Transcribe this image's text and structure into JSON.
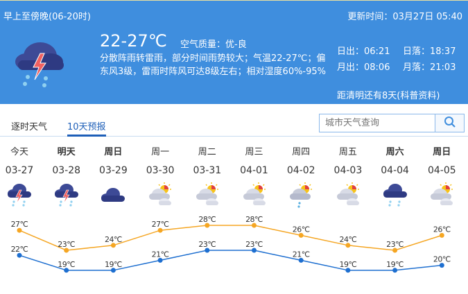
{
  "header": {
    "period": "早上至傍晚(06-20时)",
    "update_time": "更新时间：03月27日 05:40",
    "icon": "thunder-rain-icon",
    "temp_range": "22-27℃",
    "air_quality": "空气质量：优-良",
    "description": "分散阵雨转雷雨，部分时间雨势较大；气温22-27℃；偏东风3级，雷雨时阵风可达8级左右；相对湿度60%-95%",
    "sunrise": "日出：06:21",
    "sunset": "日落：18:37",
    "moonrise": "月出：08:06",
    "moonset": "月落：21:03",
    "qingming": "距清明还有8天(科普资料)",
    "color": "#3f8ede"
  },
  "tabs": [
    {
      "label": "逐时天气",
      "active": false
    },
    {
      "label": "10天预报",
      "active": true
    }
  ],
  "search": {
    "placeholder": "城市天气查询",
    "icon": "search-icon"
  },
  "forecast": [
    {
      "weekday": "今天",
      "date": "03-27",
      "bold": false,
      "icon": "thunder-rain"
    },
    {
      "weekday": "明天",
      "date": "03-28",
      "bold": true,
      "icon": "thunder-rain"
    },
    {
      "weekday": "周日",
      "date": "03-29",
      "bold": true,
      "icon": "overcast"
    },
    {
      "weekday": "周一",
      "date": "03-30",
      "bold": false,
      "icon": "partly-cloudy"
    },
    {
      "weekday": "周二",
      "date": "03-31",
      "bold": false,
      "icon": "partly-cloudy"
    },
    {
      "weekday": "周三",
      "date": "04-01",
      "bold": false,
      "icon": "partly-cloudy"
    },
    {
      "weekday": "周四",
      "date": "04-02",
      "bold": false,
      "icon": "sun-cloud-rain"
    },
    {
      "weekday": "周五",
      "date": "04-03",
      "bold": false,
      "icon": "partly-cloudy"
    },
    {
      "weekday": "周六",
      "date": "04-04",
      "bold": true,
      "icon": "overcast-rain"
    },
    {
      "weekday": "周日",
      "date": "04-05",
      "bold": true,
      "icon": "partly-cloudy"
    }
  ],
  "chart_data": {
    "type": "line",
    "x": [
      "03-27",
      "03-28",
      "03-29",
      "03-30",
      "03-31",
      "04-01",
      "04-02",
      "04-03",
      "04-04",
      "04-05"
    ],
    "series": [
      {
        "values": [
          27,
          23,
          24,
          27,
          28,
          28,
          26,
          24,
          23,
          26
        ],
        "color": "#f5a623",
        "labels": [
          "27℃",
          "23℃",
          "24℃",
          "27℃",
          "28℃",
          "28℃",
          "26℃",
          "24℃",
          "23℃",
          "26℃"
        ]
      },
      {
        "values": [
          22,
          19,
          19,
          21,
          23,
          23,
          21,
          19,
          19,
          20
        ],
        "color": "#1e6fd0",
        "labels": [
          "22℃",
          "19℃",
          "19℃",
          "21℃",
          "23℃",
          "23℃",
          "21℃",
          "19℃",
          "19℃",
          "20℃"
        ]
      }
    ]
  }
}
